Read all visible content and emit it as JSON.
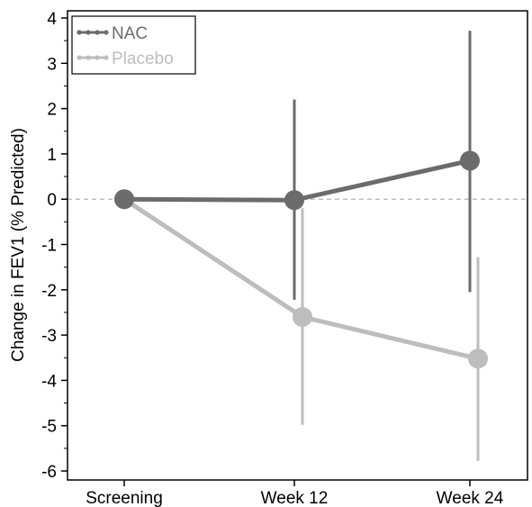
{
  "chart_data": {
    "type": "line",
    "title": "",
    "xlabel": "",
    "ylabel": "Change in FEV1 (% Predicted)",
    "categories": [
      "Screening",
      "Week 12",
      "Week 24"
    ],
    "ylim": [
      -6.2,
      4.1
    ],
    "yticks": [
      4,
      3,
      2,
      1,
      0,
      -1,
      -2,
      -3,
      -4,
      -5,
      -6
    ],
    "reference_line": {
      "y": 0,
      "style": "dashed"
    },
    "grid": false,
    "legend": {
      "placement": "top-left"
    },
    "series": [
      {
        "name": "NAC",
        "color": "#6b6b6b",
        "values": [
          0,
          -0.02,
          0.85
        ],
        "error_low": [
          null,
          -2.22,
          -2.05
        ],
        "error_high": [
          null,
          2.2,
          3.72
        ]
      },
      {
        "name": "Placebo",
        "color": "#bdbdbd",
        "values": [
          0,
          -2.6,
          -3.52
        ],
        "error_low": [
          null,
          -4.98,
          -5.78
        ],
        "error_high": [
          null,
          -0.2,
          -1.28
        ]
      }
    ]
  }
}
